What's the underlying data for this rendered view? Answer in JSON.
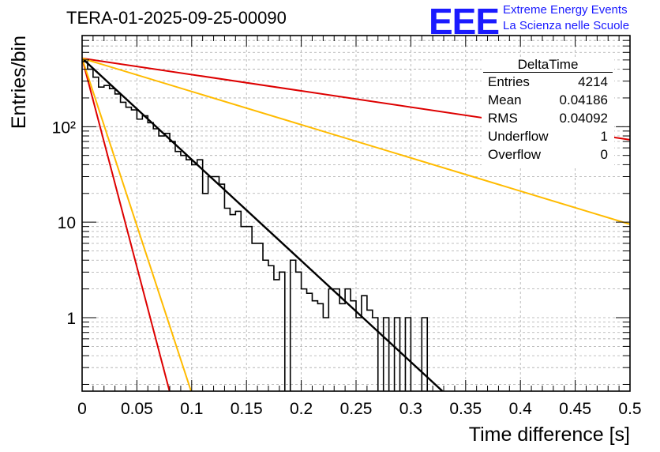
{
  "page_title": "TERA-01-2025-09-25-00090",
  "logo": {
    "mark": "EEE",
    "line1": "Extreme Energy Events",
    "line2": "La Scienza nelle Scuole",
    "color": "#1a1aff"
  },
  "stats": {
    "name": "DeltaTime",
    "rows": [
      {
        "key": "Entries",
        "value": "4214"
      },
      {
        "key": "Mean",
        "value": "0.04186"
      },
      {
        "key": "RMS",
        "value": "0.04092"
      },
      {
        "key": "Underflow",
        "value": "1"
      },
      {
        "key": "Overflow",
        "value": "0"
      }
    ]
  },
  "chart_data": {
    "type": "line",
    "title": "TERA-01-2025-09-25-00090",
    "xlabel": "Time difference [s]",
    "ylabel": "Entries/bin",
    "xlim": [
      0,
      0.5
    ],
    "ylim": [
      0.17,
      900
    ],
    "yscale": "log",
    "grid": true,
    "x_ticks": [
      0,
      0.05,
      0.1,
      0.15,
      0.2,
      0.25,
      0.3,
      0.35,
      0.4,
      0.45,
      0.5
    ],
    "x_tick_labels": [
      "0",
      "0.05",
      "0.1",
      "0.15",
      "0.2",
      "0.25",
      "0.3",
      "0.35",
      "0.4",
      "0.45",
      "0.5"
    ],
    "y_ticks": [
      1,
      10,
      100
    ],
    "y_tick_labels": [
      "1",
      "10",
      "10²"
    ],
    "histogram": {
      "name": "DeltaTime",
      "bin_width": 0.005,
      "x_start": 0,
      "values": [
        480,
        400,
        330,
        260,
        270,
        250,
        220,
        180,
        160,
        150,
        120,
        130,
        110,
        95,
        80,
        85,
        70,
        55,
        50,
        45,
        40,
        45,
        20,
        30,
        30,
        25,
        14,
        12,
        13,
        9,
        9,
        6,
        6,
        4,
        3.5,
        2.5,
        3,
        0,
        4,
        3,
        2,
        1.8,
        1.5,
        1.4,
        1,
        2,
        2,
        1.4,
        2,
        1.5,
        1,
        1.7,
        1.2,
        1,
        0,
        1,
        0,
        1,
        0,
        1,
        0,
        0,
        1,
        0,
        0
      ]
    },
    "series": [
      {
        "name": "fit",
        "color": "#000000",
        "x": [
          0,
          0.334
        ],
        "y": [
          520,
          0.15
        ]
      },
      {
        "name": "red-steep",
        "color": "#dd0000",
        "x": [
          0,
          0.081
        ],
        "y": [
          520,
          0.15
        ]
      },
      {
        "name": "orange-steep",
        "color": "#ffbb00",
        "x": [
          0,
          0.101
        ],
        "y": [
          520,
          0.15
        ]
      },
      {
        "name": "red-slow",
        "color": "#dd0000",
        "x": [
          0,
          0.5
        ],
        "y": [
          520,
          73
        ]
      },
      {
        "name": "orange-slow",
        "color": "#ffbb00",
        "x": [
          0,
          0.5
        ],
        "y": [
          520,
          9.5
        ]
      }
    ]
  }
}
